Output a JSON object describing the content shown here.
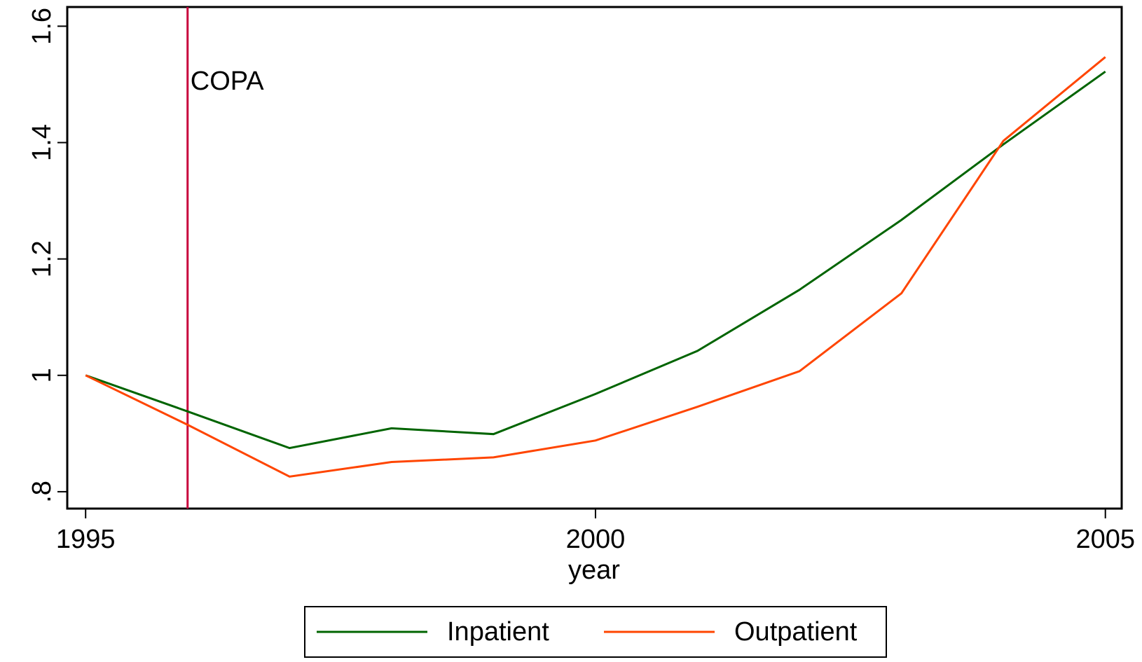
{
  "chart_data": {
    "type": "line",
    "x_label": "year",
    "x": [
      1995,
      1996,
      1997,
      1998,
      1999,
      2000,
      2001,
      2002,
      2003,
      2004,
      2005
    ],
    "series": [
      {
        "name": "Inpatient",
        "color": "#006400",
        "values": [
          1.0,
          0.938,
          0.875,
          0.909,
          0.899,
          0.968,
          1.042,
          1.147,
          1.267,
          1.397,
          1.522
        ]
      },
      {
        "name": "Outpatient",
        "color": "#ff4500",
        "values": [
          1.0,
          0.915,
          0.826,
          0.851,
          0.859,
          0.888,
          0.946,
          1.007,
          1.141,
          1.403,
          1.547
        ]
      }
    ],
    "xlim": [
      1994.82,
      2005.16
    ],
    "xticks": [
      1995,
      2000,
      2005
    ],
    "ylim": [
      0.771,
      1.633
    ],
    "yticks": [
      {
        "value": 0.8,
        "label": ".8"
      },
      1,
      1.2,
      1.4,
      1.6
    ],
    "annotations": [
      {
        "x": 1996,
        "label": "COPA",
        "color": "#c8003c"
      }
    ],
    "legend": "bottom"
  }
}
